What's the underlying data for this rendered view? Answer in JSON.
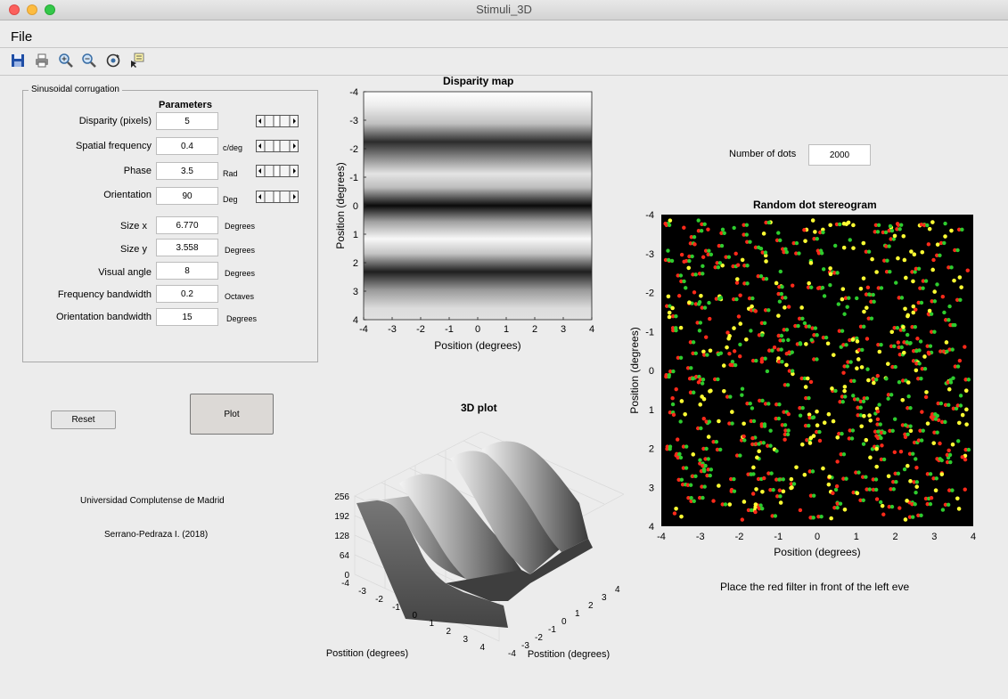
{
  "window": {
    "title": "Stimuli_3D"
  },
  "menu": {
    "file": "File"
  },
  "toolbar": {
    "icons": [
      "save-icon",
      "print-icon",
      "zoom-in-icon",
      "zoom-out-icon",
      "rotate-3d-icon",
      "data-cursor-icon"
    ]
  },
  "panel": {
    "title": "Sinusoidal corrugation",
    "header": "Parameters",
    "rows": [
      {
        "label": "Disparity (pixels)",
        "value": "5",
        "unit": ""
      },
      {
        "label": "Spatial frequency",
        "value": "0.4",
        "unit": "c/deg"
      },
      {
        "label": "Phase",
        "value": "3.5",
        "unit": "Rad"
      },
      {
        "label": "Orientation",
        "value": "90",
        "unit": "Deg"
      },
      {
        "label": "Size x",
        "value": "6.770",
        "unit": "Degrees"
      },
      {
        "label": "Size y",
        "value": "3.558",
        "unit": "Degrees"
      },
      {
        "label": "Visual angle",
        "value": "8",
        "unit": "Degrees"
      },
      {
        "label": "Frequency bandwidth",
        "value": "0.2",
        "unit": "Octaves"
      },
      {
        "label": "Orientation bandwidth",
        "value": "15",
        "unit": "Degrees"
      }
    ]
  },
  "buttons": {
    "reset": "Reset",
    "plot": "Plot"
  },
  "credits": {
    "university": "Universidad Complutense de Madrid",
    "author": "Serrano-Pedraza I. (2018)"
  },
  "dots": {
    "label": "Number of dots",
    "value": "2000"
  },
  "instruction": "Place the red filter in front of the left eve",
  "colors": {
    "red_dot": "#ff2a1a",
    "green_dot": "#2ecc2e",
    "yellow_dot": "#ffff33"
  },
  "chart_data": [
    {
      "type": "heatmap",
      "title": "Disparity map",
      "xlabel": "Position (degrees)",
      "ylabel": "Position (degrees)",
      "xlim": [
        -4,
        4
      ],
      "ylim": [
        -4,
        4
      ],
      "xticks": [
        "-4",
        "-3",
        "-2",
        "-1",
        "0",
        "1",
        "2",
        "3",
        "4"
      ],
      "yticks": [
        "-4",
        "-3",
        "-2",
        "-1",
        "0",
        "1",
        "2",
        "3",
        "4"
      ],
      "function": "cos",
      "spatial_frequency_cpd": 0.4,
      "phase_rad": 3.5,
      "orientation_deg": 90,
      "dark_bands_y": [
        -2.3,
        0,
        2.3
      ],
      "colormap": "gray"
    },
    {
      "type": "surface",
      "title": "3D plot",
      "xlabel": "Postition (degrees)",
      "ylabel": "Postition (degrees)",
      "zticks": [
        "0",
        "64",
        "128",
        "192",
        "256"
      ],
      "zlim": [
        0,
        256
      ],
      "axis_ticks": [
        "-4",
        "-3",
        "-2",
        "-1",
        "0",
        "1",
        "2",
        "3",
        "4"
      ]
    },
    {
      "type": "scatter",
      "title": "Random dot stereogram",
      "xlabel": "Position (degrees)",
      "ylabel": "Position (degrees)",
      "xlim": [
        -4,
        4
      ],
      "ylim": [
        -4,
        4
      ],
      "xticks": [
        "-4",
        "-3",
        "-2",
        "-1",
        "0",
        "1",
        "2",
        "3",
        "4"
      ],
      "yticks": [
        "-4",
        "-3",
        "-2",
        "-1",
        "0",
        "1",
        "2",
        "3",
        "4"
      ],
      "background": "#000000",
      "n_dots": 2000
    }
  ]
}
